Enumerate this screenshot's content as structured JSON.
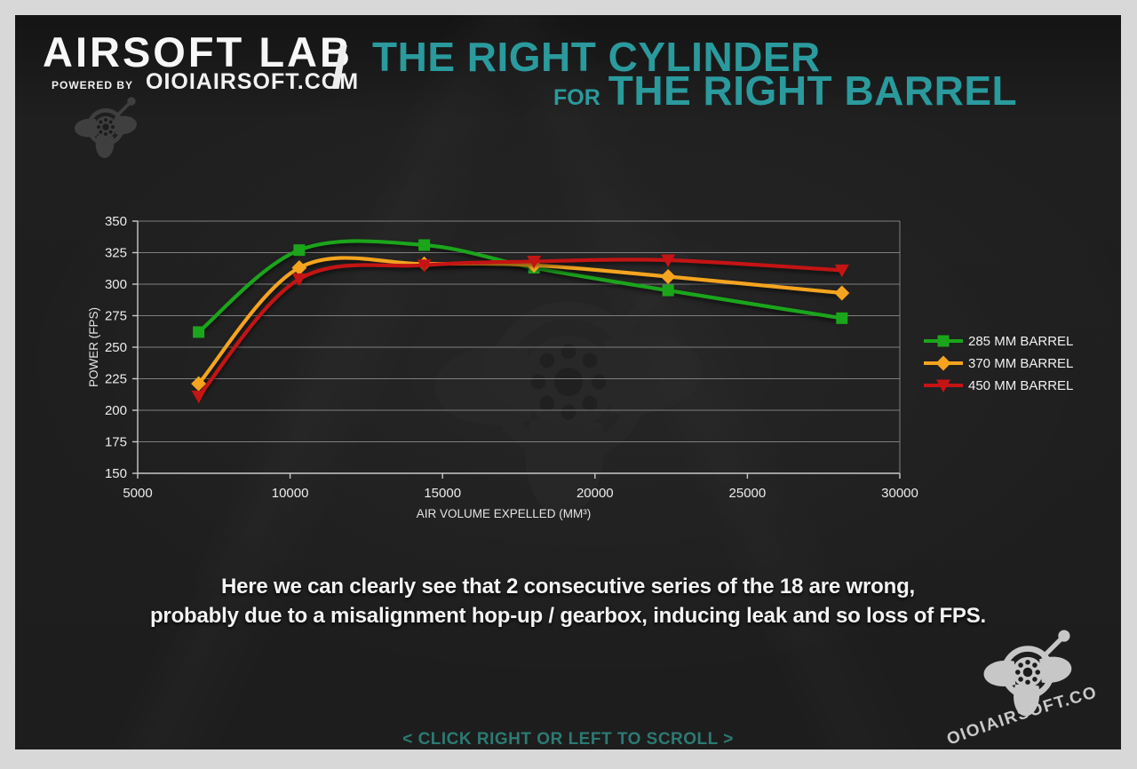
{
  "header": {
    "brand": "AIRSOFT LAB",
    "powered_by_label": "POWERED BY",
    "brand_site": "OIOIAIRSOFT.COM",
    "divider": "/",
    "title_line1": "THE RIGHT CYLINDER",
    "title_for": "FOR",
    "title_line2": "THE RIGHT BARREL",
    "title_color": "#2a9a9d"
  },
  "chart_data": {
    "type": "line",
    "title": "",
    "xlabel": "AIR VOLUME EXPELLED (MM³)",
    "ylabel": "POWER (FPS)",
    "xlim": [
      5000,
      30000
    ],
    "ylim": [
      150,
      350
    ],
    "xticks": [
      5000,
      10000,
      15000,
      20000,
      25000,
      30000
    ],
    "yticks": [
      150,
      175,
      200,
      225,
      250,
      275,
      300,
      325,
      350
    ],
    "grid": "horizontal-only",
    "legend_position": "right",
    "line_style": "smooth",
    "x": [
      7000,
      10300,
      14400,
      18000,
      22400,
      28100
    ],
    "series": [
      {
        "name": "285 MM BARREL",
        "color": "#1ba51b",
        "marker": "square",
        "values": [
          262,
          327,
          331,
          313,
          295,
          273
        ]
      },
      {
        "name": "370 MM BARREL",
        "color": "#f5a41f",
        "marker": "diamond",
        "values": [
          221,
          313,
          316,
          315,
          306,
          293
        ]
      },
      {
        "name": "450 MM BARREL",
        "color": "#c41414",
        "marker": "triangle-down",
        "values": [
          211,
          304,
          315,
          318,
          319,
          311
        ]
      }
    ]
  },
  "caption": {
    "line1": "Here we can clearly see that 2 consecutive series of the 18 are wrong,",
    "line2": "probably due to a misalignment hop-up / gearbox, inducing leak and so loss of FPS."
  },
  "footer": {
    "scroll_hint": "< CLICK RIGHT OR LEFT TO SCROLL >",
    "scroll_hint_color": "#2c7a73",
    "watermark": "OIOIAIRSOFT.COM"
  },
  "colors": {
    "background": "#1c1c1c",
    "frame": "#d8d8d8",
    "text": "#f3f3f3",
    "gridline": "#7f7f7f",
    "axis": "#c9c9c9"
  }
}
